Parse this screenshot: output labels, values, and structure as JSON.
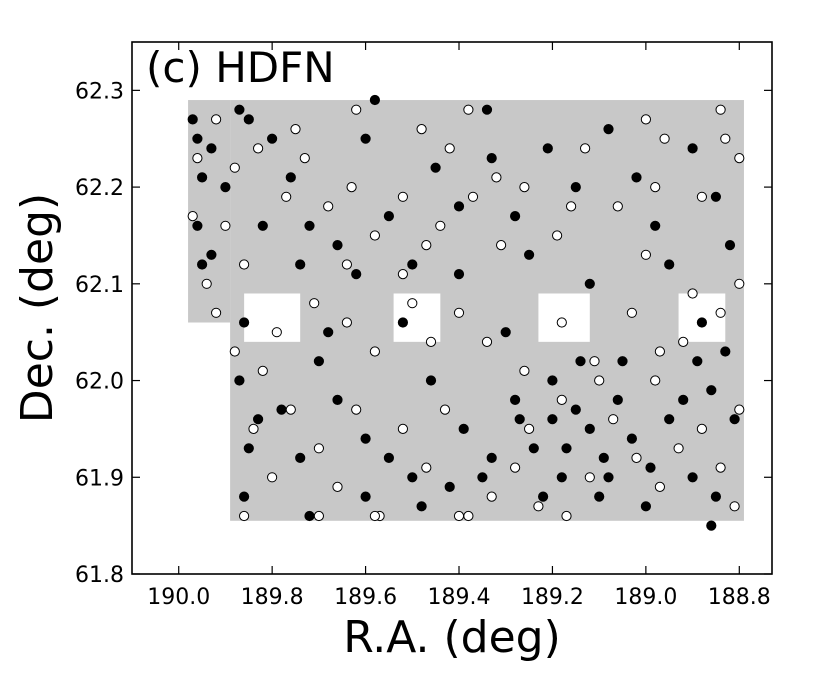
{
  "chart_data": {
    "type": "scatter",
    "title": "(c) HDFN",
    "xlabel": "R.A. (deg)",
    "ylabel": "Dec. (deg)",
    "xlim": [
      190.1,
      188.73
    ],
    "ylim": [
      61.8,
      62.35
    ],
    "x_inverted": true,
    "xticks": [
      "190.0",
      "189.8",
      "189.6",
      "189.4",
      "189.2",
      "189.0",
      "188.8"
    ],
    "yticks": [
      "61.8",
      "61.9",
      "62.0",
      "62.1",
      "62.2",
      "62.3"
    ],
    "grid": false,
    "legend": "none",
    "colors": {
      "coverage": "#c8c8c8",
      "filled": "#000000",
      "open_fill": "#ffffff",
      "open_edge": "#000000"
    },
    "coverage_regions": [
      {
        "ra": [
          189.98,
          189.89
        ],
        "dec": [
          62.06,
          62.29
        ]
      },
      {
        "ra": [
          189.89,
          188.79
        ],
        "dec": [
          61.855,
          62.29
        ]
      }
    ],
    "coverage_holes": [
      {
        "ra": [
          189.86,
          189.74
        ],
        "dec": [
          62.04,
          62.09
        ]
      },
      {
        "ra": [
          189.54,
          189.44
        ],
        "dec": [
          62.04,
          62.09
        ]
      },
      {
        "ra": [
          189.23,
          189.12
        ],
        "dec": [
          62.04,
          62.09
        ]
      },
      {
        "ra": [
          188.93,
          188.83
        ],
        "dec": [
          62.04,
          62.09
        ]
      }
    ],
    "series": [
      {
        "marker": "filled",
        "points": [
          [
            189.97,
            62.27
          ],
          [
            189.96,
            62.25
          ],
          [
            189.95,
            62.21
          ],
          [
            189.93,
            62.24
          ],
          [
            189.9,
            62.2
          ],
          [
            189.96,
            62.16
          ],
          [
            189.93,
            62.13
          ],
          [
            189.95,
            62.12
          ],
          [
            189.85,
            62.27
          ],
          [
            189.8,
            62.25
          ],
          [
            189.76,
            62.21
          ],
          [
            189.72,
            62.16
          ],
          [
            189.66,
            62.14
          ],
          [
            189.62,
            62.11
          ],
          [
            189.55,
            62.17
          ],
          [
            189.5,
            62.12
          ],
          [
            189.45,
            62.22
          ],
          [
            189.4,
            62.18
          ],
          [
            189.33,
            62.23
          ],
          [
            189.28,
            62.17
          ],
          [
            189.21,
            62.24
          ],
          [
            189.15,
            62.2
          ],
          [
            189.08,
            62.26
          ],
          [
            189.02,
            62.21
          ],
          [
            188.98,
            62.16
          ],
          [
            188.9,
            62.24
          ],
          [
            188.85,
            62.19
          ],
          [
            188.82,
            62.14
          ],
          [
            189.86,
            62.06
          ],
          [
            189.87,
            62.0
          ],
          [
            189.83,
            61.96
          ],
          [
            189.85,
            61.93
          ],
          [
            189.78,
            61.97
          ],
          [
            189.74,
            61.92
          ],
          [
            189.7,
            62.02
          ],
          [
            189.66,
            61.98
          ],
          [
            189.6,
            61.94
          ],
          [
            189.55,
            61.92
          ],
          [
            189.5,
            61.9
          ],
          [
            189.46,
            62.0
          ],
          [
            189.42,
            61.89
          ],
          [
            189.39,
            61.95
          ],
          [
            189.33,
            61.92
          ],
          [
            189.27,
            61.96
          ],
          [
            189.24,
            61.93
          ],
          [
            189.2,
            62.0
          ],
          [
            189.18,
            61.9
          ],
          [
            189.15,
            61.97
          ],
          [
            189.12,
            61.95
          ],
          [
            189.09,
            61.92
          ],
          [
            189.06,
            61.98
          ],
          [
            189.03,
            61.94
          ],
          [
            188.99,
            61.91
          ],
          [
            188.95,
            61.96
          ],
          [
            188.92,
            61.98
          ],
          [
            188.89,
            62.02
          ],
          [
            188.86,
            61.99
          ],
          [
            188.83,
            62.03
          ],
          [
            188.81,
            61.96
          ],
          [
            188.85,
            61.88
          ],
          [
            188.9,
            61.9
          ],
          [
            189.0,
            61.87
          ],
          [
            189.1,
            61.88
          ],
          [
            189.22,
            61.88
          ],
          [
            189.35,
            61.9
          ],
          [
            189.48,
            61.87
          ],
          [
            189.6,
            61.88
          ],
          [
            189.72,
            61.86
          ],
          [
            189.86,
            61.88
          ],
          [
            188.86,
            61.85
          ],
          [
            189.34,
            62.28
          ],
          [
            189.58,
            62.29
          ],
          [
            189.87,
            62.28
          ],
          [
            189.68,
            62.05
          ],
          [
            189.52,
            62.06
          ],
          [
            189.3,
            62.05
          ],
          [
            189.05,
            62.02
          ],
          [
            188.88,
            62.06
          ],
          [
            189.4,
            62.11
          ],
          [
            189.25,
            62.13
          ],
          [
            189.12,
            62.1
          ],
          [
            188.95,
            62.12
          ],
          [
            189.82,
            62.16
          ],
          [
            189.74,
            62.12
          ],
          [
            189.6,
            62.25
          ],
          [
            189.28,
            61.98
          ],
          [
            189.2,
            61.96
          ],
          [
            189.17,
            61.93
          ],
          [
            189.14,
            62.02
          ],
          [
            189.08,
            61.9
          ]
        ]
      },
      {
        "marker": "open",
        "points": [
          [
            189.96,
            62.23
          ],
          [
            189.92,
            62.27
          ],
          [
            189.88,
            62.22
          ],
          [
            189.83,
            62.24
          ],
          [
            189.77,
            62.19
          ],
          [
            189.73,
            62.23
          ],
          [
            189.68,
            62.18
          ],
          [
            189.63,
            62.2
          ],
          [
            189.58,
            62.15
          ],
          [
            189.52,
            62.19
          ],
          [
            189.47,
            62.14
          ],
          [
            189.42,
            62.24
          ],
          [
            189.37,
            62.19
          ],
          [
            189.31,
            62.14
          ],
          [
            189.26,
            62.2
          ],
          [
            189.19,
            62.15
          ],
          [
            189.13,
            62.24
          ],
          [
            189.06,
            62.18
          ],
          [
            189.0,
            62.13
          ],
          [
            188.96,
            62.25
          ],
          [
            188.88,
            62.19
          ],
          [
            188.83,
            62.25
          ],
          [
            188.8,
            62.23
          ],
          [
            189.97,
            62.17
          ],
          [
            189.94,
            62.1
          ],
          [
            189.92,
            62.07
          ],
          [
            189.88,
            62.03
          ],
          [
            189.82,
            62.01
          ],
          [
            189.79,
            62.05
          ],
          [
            189.71,
            62.08
          ],
          [
            189.64,
            62.06
          ],
          [
            189.58,
            62.03
          ],
          [
            189.5,
            62.08
          ],
          [
            189.46,
            62.04
          ],
          [
            189.4,
            62.07
          ],
          [
            189.34,
            62.04
          ],
          [
            189.26,
            62.01
          ],
          [
            189.18,
            62.06
          ],
          [
            189.11,
            62.02
          ],
          [
            189.03,
            62.07
          ],
          [
            188.97,
            62.03
          ],
          [
            188.9,
            62.09
          ],
          [
            188.84,
            62.07
          ],
          [
            188.8,
            62.1
          ],
          [
            189.84,
            61.95
          ],
          [
            189.8,
            61.9
          ],
          [
            189.76,
            61.97
          ],
          [
            189.7,
            61.93
          ],
          [
            189.66,
            61.89
          ],
          [
            189.62,
            61.97
          ],
          [
            189.57,
            61.86
          ],
          [
            189.52,
            61.95
          ],
          [
            189.47,
            61.91
          ],
          [
            189.43,
            61.97
          ],
          [
            189.38,
            61.86
          ],
          [
            189.33,
            61.88
          ],
          [
            189.28,
            61.91
          ],
          [
            189.23,
            61.87
          ],
          [
            189.17,
            61.86
          ],
          [
            189.12,
            61.9
          ],
          [
            189.07,
            61.96
          ],
          [
            189.02,
            61.92
          ],
          [
            188.97,
            61.89
          ],
          [
            188.93,
            61.93
          ],
          [
            188.88,
            61.95
          ],
          [
            188.84,
            61.91
          ],
          [
            188.8,
            61.97
          ],
          [
            188.81,
            61.87
          ],
          [
            189.86,
            61.86
          ],
          [
            189.7,
            61.86
          ],
          [
            189.58,
            61.86
          ],
          [
            189.4,
            61.86
          ],
          [
            189.25,
            61.95
          ],
          [
            189.18,
            61.98
          ],
          [
            189.1,
            62.0
          ],
          [
            188.98,
            62.0
          ],
          [
            188.92,
            62.04
          ],
          [
            189.38,
            62.28
          ],
          [
            189.48,
            62.26
          ],
          [
            189.75,
            62.26
          ],
          [
            189.0,
            62.27
          ],
          [
            188.84,
            62.28
          ],
          [
            189.62,
            62.28
          ],
          [
            189.9,
            62.16
          ],
          [
            189.32,
            62.21
          ],
          [
            189.16,
            62.18
          ],
          [
            189.64,
            62.12
          ],
          [
            189.52,
            62.11
          ],
          [
            189.44,
            62.16
          ],
          [
            189.86,
            62.12
          ],
          [
            188.98,
            62.2
          ]
        ]
      }
    ]
  }
}
